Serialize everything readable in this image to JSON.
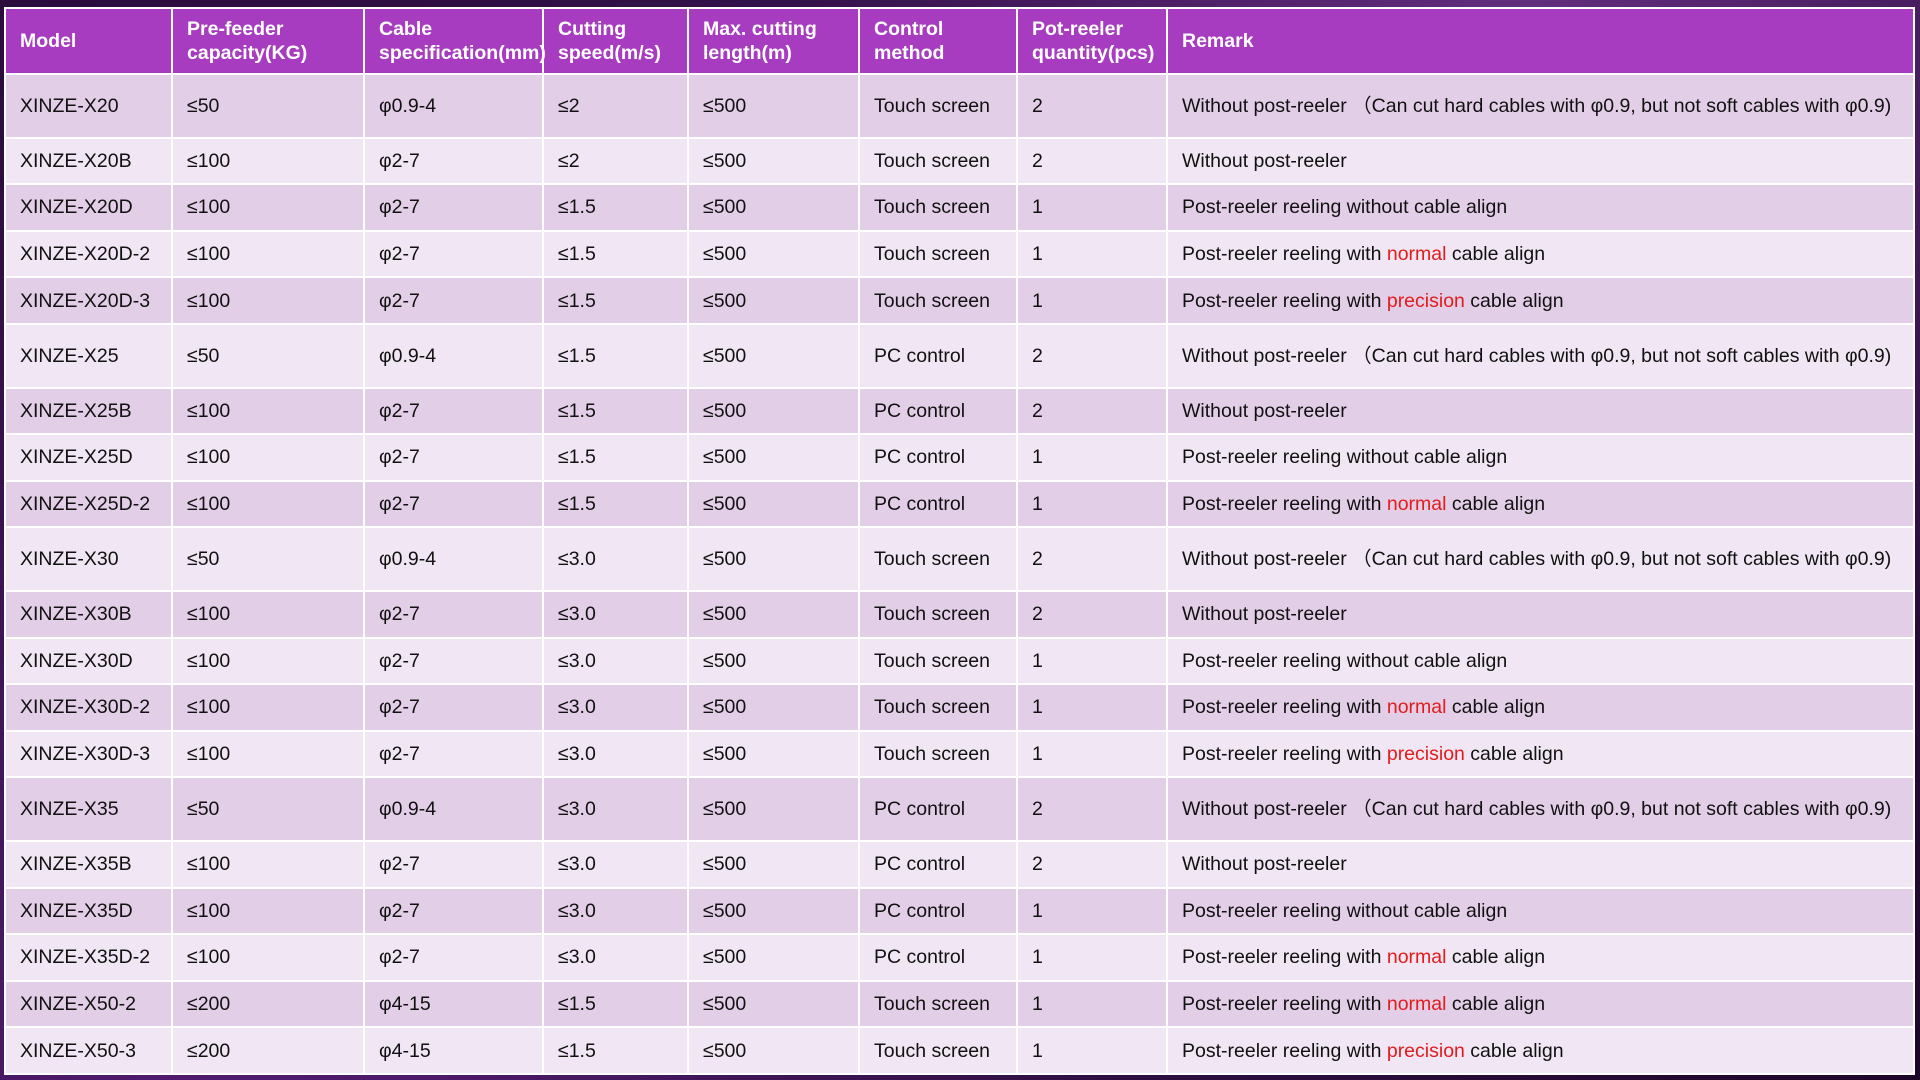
{
  "table": {
    "headers": [
      "Model",
      "Pre-feeder capacity(KG)",
      "Cable specification(mm)",
      "Cutting speed(m/s)",
      "Max. cutting length(m)",
      "Control method",
      "Pot-reeler quantity(pcs)",
      "Remark"
    ],
    "rows": [
      {
        "model": "XINZE-X20",
        "capacity": "≤50",
        "spec": "φ0.9-4",
        "speed": "≤2",
        "length": "≤500",
        "control": "Touch screen",
        "qty": "2",
        "remark_pre": "Without post-reeler （Can cut hard cables with φ0.9, but not soft cables with φ0.9)",
        "remark_hl": "",
        "remark_post": ""
      },
      {
        "model": "XINZE-X20B",
        "capacity": "≤100",
        "spec": "φ2-7",
        "speed": "≤2",
        "length": "≤500",
        "control": "Touch screen",
        "qty": "2",
        "remark_pre": "Without post-reeler",
        "remark_hl": "",
        "remark_post": ""
      },
      {
        "model": "XINZE-X20D",
        "capacity": "≤100",
        "spec": "φ2-7",
        "speed": "≤1.5",
        "length": "≤500",
        "control": "Touch screen",
        "qty": "1",
        "remark_pre": "Post-reeler reeling without cable align",
        "remark_hl": "",
        "remark_post": ""
      },
      {
        "model": "XINZE-X20D-2",
        "capacity": "≤100",
        "spec": "φ2-7",
        "speed": "≤1.5",
        "length": "≤500",
        "control": "Touch screen",
        "qty": "1",
        "remark_pre": "Post-reeler reeling with ",
        "remark_hl": "normal",
        "remark_post": " cable align"
      },
      {
        "model": "XINZE-X20D-3",
        "capacity": "≤100",
        "spec": "φ2-7",
        "speed": "≤1.5",
        "length": "≤500",
        "control": "Touch screen",
        "qty": "1",
        "remark_pre": "Post-reeler reeling with ",
        "remark_hl": "precision",
        "remark_post": " cable align"
      },
      {
        "model": "XINZE-X25",
        "capacity": "≤50",
        "spec": "φ0.9-4",
        "speed": "≤1.5",
        "length": "≤500",
        "control": "PC control",
        "qty": "2",
        "remark_pre": "Without post-reeler （Can cut hard cables with φ0.9, but not soft cables with φ0.9)",
        "remark_hl": "",
        "remark_post": ""
      },
      {
        "model": "XINZE-X25B",
        "capacity": "≤100",
        "spec": "φ2-7",
        "speed": "≤1.5",
        "length": "≤500",
        "control": "PC control",
        "qty": "2",
        "remark_pre": "Without post-reeler",
        "remark_hl": "",
        "remark_post": ""
      },
      {
        "model": "XINZE-X25D",
        "capacity": "≤100",
        "spec": "φ2-7",
        "speed": "≤1.5",
        "length": "≤500",
        "control": "PC control",
        "qty": "1",
        "remark_pre": "Post-reeler reeling without cable align",
        "remark_hl": "",
        "remark_post": ""
      },
      {
        "model": "XINZE-X25D-2",
        "capacity": "≤100",
        "spec": "φ2-7",
        "speed": "≤1.5",
        "length": "≤500",
        "control": "PC control",
        "qty": "1",
        "remark_pre": "Post-reeler reeling with ",
        "remark_hl": "normal",
        "remark_post": " cable align"
      },
      {
        "model": "XINZE-X30",
        "capacity": "≤50",
        "spec": "φ0.9-4",
        "speed": "≤3.0",
        "length": "≤500",
        "control": "Touch screen",
        "qty": "2",
        "remark_pre": "Without post-reeler （Can cut hard cables with φ0.9, but not soft cables with φ0.9)",
        "remark_hl": "",
        "remark_post": ""
      },
      {
        "model": "XINZE-X30B",
        "capacity": "≤100",
        "spec": "φ2-7",
        "speed": "≤3.0",
        "length": "≤500",
        "control": "Touch screen",
        "qty": "2",
        "remark_pre": "Without post-reeler",
        "remark_hl": "",
        "remark_post": ""
      },
      {
        "model": "XINZE-X30D",
        "capacity": "≤100",
        "spec": "φ2-7",
        "speed": "≤3.0",
        "length": "≤500",
        "control": "Touch screen",
        "qty": "1",
        "remark_pre": "Post-reeler reeling without cable align",
        "remark_hl": "",
        "remark_post": ""
      },
      {
        "model": "XINZE-X30D-2",
        "capacity": "≤100",
        "spec": "φ2-7",
        "speed": "≤3.0",
        "length": "≤500",
        "control": "Touch screen",
        "qty": "1",
        "remark_pre": "Post-reeler reeling with ",
        "remark_hl": "normal",
        "remark_post": " cable align"
      },
      {
        "model": "XINZE-X30D-3",
        "capacity": "≤100",
        "spec": "φ2-7",
        "speed": "≤3.0",
        "length": "≤500",
        "control": "Touch screen",
        "qty": "1",
        "remark_pre": "Post-reeler reeling with ",
        "remark_hl": "precision",
        "remark_post": " cable align"
      },
      {
        "model": "XINZE-X35",
        "capacity": "≤50",
        "spec": "φ0.9-4",
        "speed": "≤3.0",
        "length": "≤500",
        "control": "PC control",
        "qty": "2",
        "remark_pre": "Without post-reeler （Can cut hard cables with φ0.9, but not soft cables with φ0.9)",
        "remark_hl": "",
        "remark_post": ""
      },
      {
        "model": "XINZE-X35B",
        "capacity": "≤100",
        "spec": "φ2-7",
        "speed": "≤3.0",
        "length": "≤500",
        "control": "PC control",
        "qty": "2",
        "remark_pre": "Without post-reeler",
        "remark_hl": "",
        "remark_post": ""
      },
      {
        "model": "XINZE-X35D",
        "capacity": "≤100",
        "spec": "φ2-7",
        "speed": "≤3.0",
        "length": "≤500",
        "control": "PC control",
        "qty": "1",
        "remark_pre": "Post-reeler reeling without cable align",
        "remark_hl": "",
        "remark_post": ""
      },
      {
        "model": "XINZE-X35D-2",
        "capacity": "≤100",
        "spec": "φ2-7",
        "speed": "≤3.0",
        "length": "≤500",
        "control": "PC control",
        "qty": "1",
        "remark_pre": "Post-reeler reeling with ",
        "remark_hl": "normal",
        "remark_post": " cable align"
      },
      {
        "model": "XINZE-X50-2",
        "capacity": "≤200",
        "spec": "φ4-15",
        "speed": "≤1.5",
        "length": "≤500",
        "control": "Touch screen",
        "qty": "1",
        "remark_pre": "Post-reeler reeling with ",
        "remark_hl": "normal",
        "remark_post": " cable align"
      },
      {
        "model": "XINZE-X50-3",
        "capacity": "≤200",
        "spec": "φ4-15",
        "speed": "≤1.5",
        "length": "≤500",
        "control": "Touch screen",
        "qty": "1",
        "remark_pre": "Post-reeler reeling with ",
        "remark_hl": "precision",
        "remark_post": " cable align"
      }
    ]
  },
  "colors": {
    "header_bg": "#a83cc0",
    "row_odd": "#e3cee7",
    "row_even": "#f1e6f3",
    "highlight": "#e31b1b"
  }
}
